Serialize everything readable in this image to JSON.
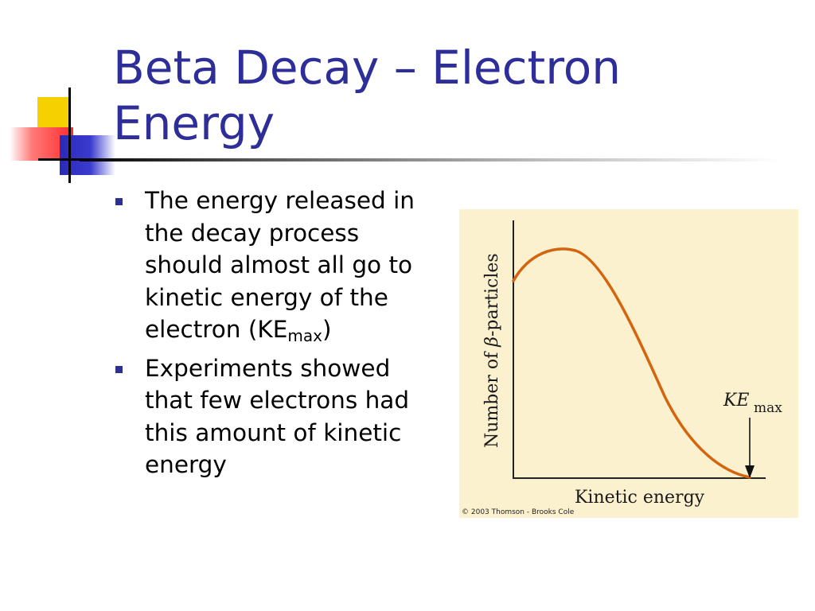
{
  "slide": {
    "title": "Beta Decay – Electron Energy",
    "bullets": [
      {
        "text": "The energy released in the decay process should almost all go to kinetic energy of the electron (KE",
        "sub": "max",
        "tail": ")"
      },
      {
        "text": "Experiments showed that few electrons had this amount of kinetic energy"
      }
    ]
  },
  "figure": {
    "ylabel_pre": "Number of ",
    "ylabel_symbol": "β",
    "ylabel_post": "-particles",
    "xlabel": "Kinetic energy",
    "annotation_main": "KE",
    "annotation_sub": "max",
    "credit": "© 2003 Thomson - Brooks Cole"
  },
  "colors": {
    "title": "#2e2e99",
    "bullet": "#2e2e99",
    "curve": "#d4640e",
    "figure_bg": "#fcf1ce"
  },
  "icons": [
    "bullet-square-icon"
  ]
}
